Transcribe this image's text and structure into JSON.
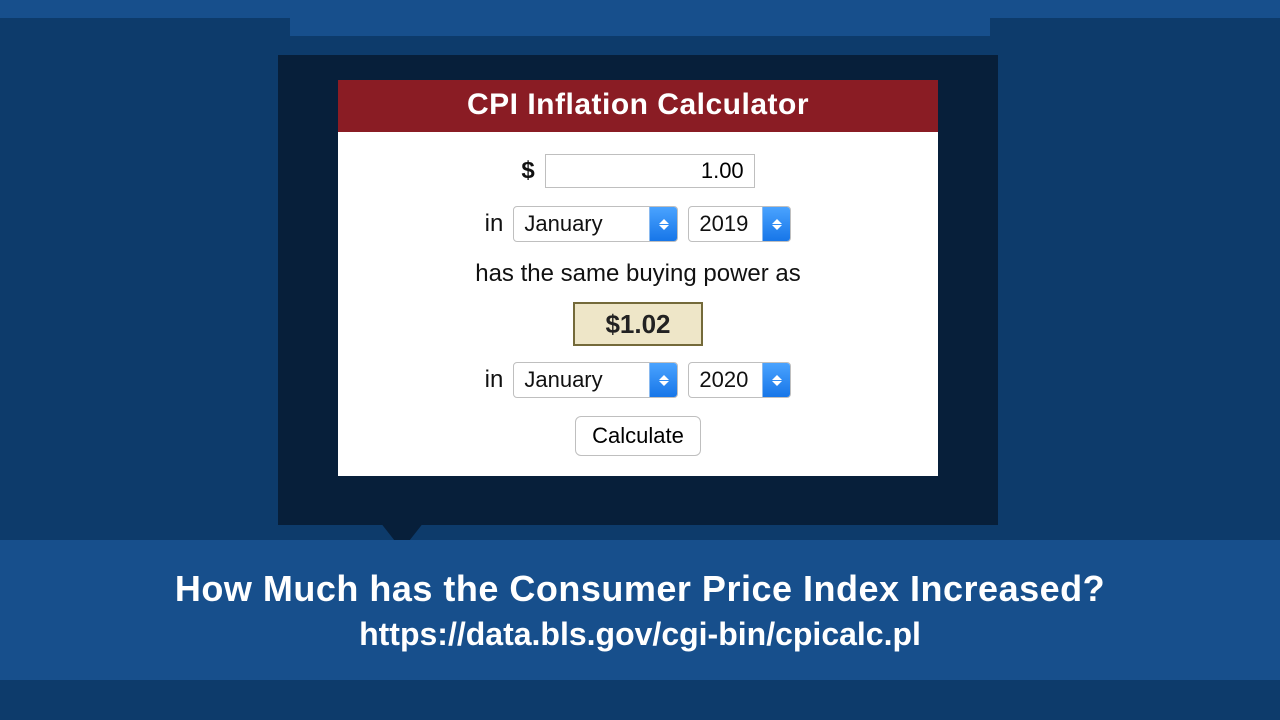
{
  "colors": {
    "page_bg": "#0d3b6b",
    "band_bg": "#174f8c",
    "card_bg": "#071f3a",
    "panel_bg": "#ffffff",
    "header_bg": "#8a1c24",
    "header_text": "#ffffff",
    "result_bg": "#eee6c8",
    "result_border": "#746a3a",
    "select_button_top": "#4aa3ff",
    "select_button_bottom": "#1776e8"
  },
  "calculator": {
    "title": "CPI Inflation Calculator",
    "currency_symbol": "$",
    "amount_value": "1.00",
    "in_label": "in",
    "from": {
      "month": "January",
      "year": "2019"
    },
    "power_text": "has the same buying power as",
    "result": "$1.02",
    "to": {
      "month": "January",
      "year": "2020"
    },
    "calculate_label": "Calculate"
  },
  "caption": {
    "line1": "How Much has the Consumer Price Index Increased?",
    "line2": "https://data.bls.gov/cgi-bin/cpicalc.pl"
  }
}
